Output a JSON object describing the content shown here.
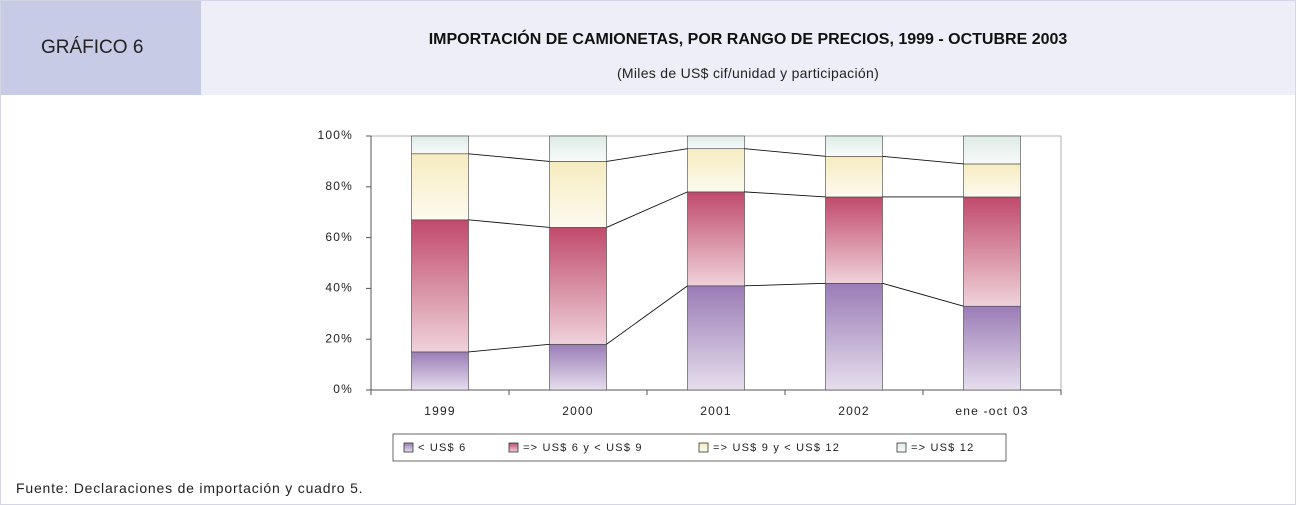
{
  "header": {
    "label": "GRÁFICO 6"
  },
  "chart_data": {
    "type": "stacked_bar",
    "title": "IMPORTACIÓN DE CAMIONETAS, POR RANGO DE PRECIOS,  1999 - OCTUBRE 2003",
    "subtitle": "(Miles de US$ cif/unidad y participación)",
    "categories": [
      "1999",
      "2000",
      "2001",
      "2002",
      "ene -oct 03"
    ],
    "series": [
      {
        "name": "< US$ 6",
        "color": "#9a7cb6",
        "values": [
          15,
          18,
          41,
          42,
          33
        ]
      },
      {
        "name": "=> US$ 6 y < US$ 9",
        "color": "#c04a6c",
        "values": [
          52,
          46,
          37,
          34,
          43
        ]
      },
      {
        "name": "=> US$ 9 y < US$ 12",
        "color": "#f6ecc0",
        "values": [
          26,
          26,
          17,
          16,
          13
        ]
      },
      {
        "name": "=> US$ 12",
        "color": "#dfece6",
        "values": [
          7,
          10,
          5,
          8,
          11
        ]
      }
    ],
    "ylim": [
      0,
      100
    ],
    "yticks": [
      {
        "value": 0,
        "label": "0%"
      },
      {
        "value": 20,
        "label": "20%"
      },
      {
        "value": 40,
        "label": "40%"
      },
      {
        "value": 60,
        "label": "60%"
      },
      {
        "value": 80,
        "label": "80%"
      },
      {
        "value": 100,
        "label": "100%"
      }
    ],
    "series_lines": true,
    "legend": "bottom"
  },
  "source": "Fuente: Declaraciones de importación y cuadro 5."
}
